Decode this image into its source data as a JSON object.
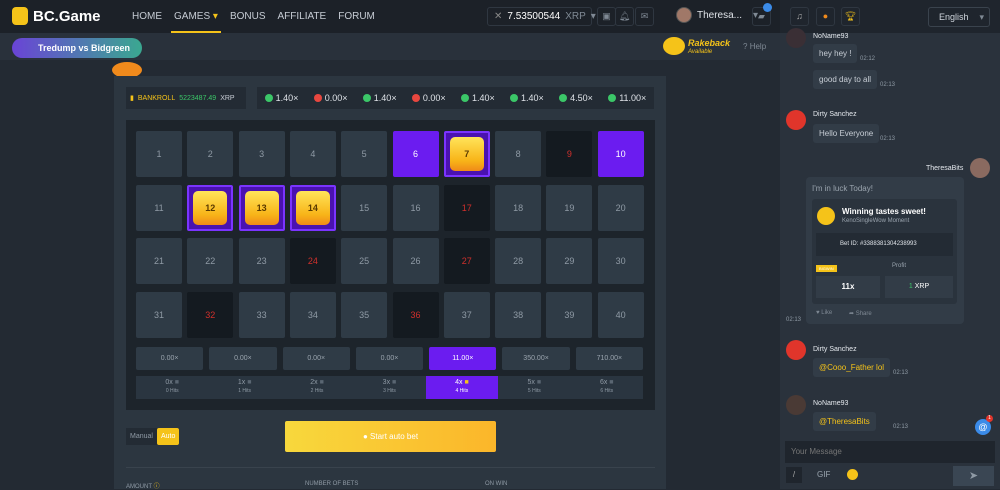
{
  "header": {
    "brand": "BC.Game",
    "nav": [
      "HOME",
      "GAMES",
      "BONUS",
      "AFFILIATE",
      "FORUM"
    ],
    "active_nav": "GAMES",
    "balance": "7.53500544",
    "currency": "XRP",
    "username": "Theresa...",
    "notification_badge": true
  },
  "promo": {
    "banner": "Tredump vs Bidgreen",
    "rakeback": "Rakeback",
    "rakeback_sub": "Available",
    "help": "Help"
  },
  "game": {
    "bankroll_label": "BANKROLL",
    "bankroll_value": "5223487.49",
    "bankroll_currency": "XRP",
    "history": [
      {
        "v": "1.40×",
        "win": true
      },
      {
        "v": "0.00×",
        "win": false
      },
      {
        "v": "1.40×",
        "win": true
      },
      {
        "v": "0.00×",
        "win": false
      },
      {
        "v": "1.40×",
        "win": true
      },
      {
        "v": "1.40×",
        "win": true
      },
      {
        "v": "4.50×",
        "win": true
      },
      {
        "v": "11.00×",
        "win": true
      }
    ],
    "selected": [
      6,
      7,
      10,
      12,
      13,
      14
    ],
    "hits": [
      7,
      12,
      13,
      14
    ],
    "misses": [
      9,
      17,
      24,
      27,
      32,
      36
    ],
    "payouts": [
      "0.00×",
      "0.00×",
      "0.00×",
      "0.00×",
      "11.00×",
      "350.00×",
      "710.00×"
    ],
    "active_payout": 4,
    "hit_counts": [
      {
        "x": "0x",
        "h": "0 Hits"
      },
      {
        "x": "1x",
        "h": "1 Hits"
      },
      {
        "x": "2x",
        "h": "2 Hits"
      },
      {
        "x": "3x",
        "h": "3 Hits"
      },
      {
        "x": "4x",
        "h": "4 Hits"
      },
      {
        "x": "5x",
        "h": "5 Hits"
      },
      {
        "x": "6x",
        "h": "6 Hits"
      }
    ],
    "mode_manual": "Manual",
    "mode_auto": "Auto",
    "start_button": "Start auto bet",
    "labels": {
      "amount": "AMOUNT",
      "number_of_bets": "NUMBER OF BETS",
      "on_win": "ON WIN"
    }
  },
  "chat": {
    "language": "English",
    "messages": [
      {
        "user": "NoName93",
        "text": "hey hey !",
        "time": "02:12"
      },
      {
        "user": "",
        "text": "good day to all",
        "time": "02:13"
      },
      {
        "user": "Dirty Sanchez",
        "text": "Hello Everyone",
        "time": "02:13"
      },
      {
        "user": "Dirty Sanchez",
        "text": "@Cooo_Father lol",
        "time": "02:13"
      },
      {
        "user": "NoName93",
        "text": "@TheresaBits",
        "time": "02:13"
      }
    ],
    "share": {
      "user": "TheresaBits",
      "text": "I'm in luck Today!",
      "title": "Winning tastes sweet!",
      "subtitle": "KenoSingleWow Moment",
      "bet_id": "Bet ID: #3388381304238993",
      "bigwin": "BIGWIN",
      "profit_label": "Profit",
      "multiplier": "11x",
      "profit_value": "1",
      "profit_currency": "XRP",
      "like": "Like",
      "share": "Share",
      "time": "02:13"
    },
    "placeholder": "Your Message",
    "gif": "GIF",
    "mention_badge": "1"
  }
}
